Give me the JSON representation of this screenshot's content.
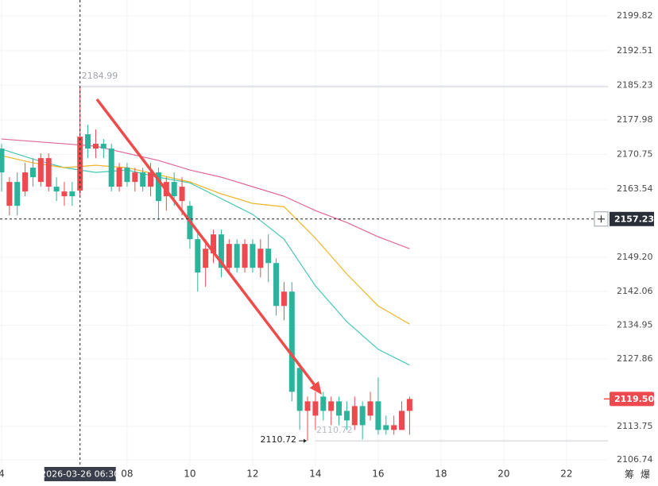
{
  "chart_data": {
    "type": "candlestick",
    "x": [
      4,
      4.25,
      4.5,
      4.75,
      5,
      5.25,
      5.5,
      5.75,
      6,
      6.25,
      6.5,
      6.75,
      7,
      7.25,
      7.5,
      7.75,
      8,
      8.25,
      8.5,
      8.75,
      9,
      9.25,
      9.5,
      9.75,
      10,
      10.25,
      10.5,
      10.75,
      11,
      11.25,
      11.5,
      11.75,
      12,
      12.25,
      12.5,
      12.75,
      13,
      13.25,
      13.5,
      13.75,
      14,
      14.25,
      14.5,
      14.75,
      15,
      15.25,
      15.5,
      15.75,
      16,
      16.25,
      16.5,
      16.75,
      17
    ],
    "open": [
      2172,
      2160,
      2165,
      2163,
      2168,
      2165,
      2164,
      2164,
      2162,
      2163,
      2163.2,
      2175,
      2172,
      2173,
      2172,
      2164,
      2168,
      2165,
      2167,
      2164,
      2167,
      2162,
      2165,
      2161,
      2160,
      2153,
      2147,
      2150,
      2154,
      2147,
      2152,
      2147,
      2152,
      2147,
      2151,
      2148,
      2139,
      2142,
      2126,
      2117,
      2116,
      2120,
      2117,
      2119,
      2117,
      2114,
      2118,
      2116,
      2119,
      2114,
      2113,
      2113,
      2117
    ],
    "high": [
      2173,
      2166,
      2167,
      2169,
      2170,
      2171,
      2171,
      2166,
      2165,
      2165,
      2184.99,
      2177,
      2176,
      2174,
      2173,
      2169,
      2169,
      2168,
      2168,
      2169,
      2168,
      2166,
      2167,
      2166,
      2161,
      2155,
      2153,
      2155,
      2155,
      2153,
      2153,
      2153,
      2153,
      2153,
      2154,
      2149,
      2144,
      2144,
      2127,
      2120,
      2121,
      2121,
      2120,
      2120,
      2119,
      2120,
      2119,
      2121,
      2124,
      2116,
      2116,
      2119,
      2120
    ],
    "low": [
      2163,
      2158,
      2158,
      2162,
      2164,
      2164,
      2163,
      2161,
      2160,
      2160,
      2162,
      2170,
      2170,
      2170,
      2163,
      2163,
      2164,
      2163,
      2163,
      2162,
      2157,
      2159,
      2160,
      2158,
      2151,
      2142,
      2143,
      2148,
      2145,
      2146,
      2146,
      2146,
      2146,
      2145,
      2144,
      2137,
      2136,
      2119,
      2113,
      2110.72,
      2113,
      2115,
      2114,
      2114,
      2113,
      2113,
      2111,
      2115,
      2112,
      2112,
      2112,
      2113,
      2112
    ],
    "close": [
      2167,
      2165,
      2160,
      2167,
      2166,
      2170,
      2170,
      2163,
      2163,
      2162,
      2174.5,
      2172,
      2173,
      2172,
      2164,
      2168,
      2165,
      2167,
      2164,
      2167,
      2161,
      2165,
      2162,
      2164,
      2153,
      2146,
      2151,
      2154,
      2147,
      2152,
      2147,
      2152,
      2147,
      2151,
      2148,
      2139,
      2142,
      2121,
      2117,
      2119,
      2119,
      2117,
      2119,
      2116,
      2115,
      2118,
      2114,
      2119,
      2113,
      2113,
      2114,
      2117,
      2119.5
    ],
    "up_color": "#ec4a4f",
    "down_color": "#2bb39b",
    "lines": [
      {
        "color": "#45c8b4",
        "x": [
          4,
          5,
          6,
          7,
          8,
          9,
          10,
          11,
          12,
          13,
          14,
          15,
          16,
          17
        ],
        "values": [
          2171.9,
          2169.8,
          2168,
          2167,
          2167.5,
          2166,
          2164.8,
          2161.5,
          2158.2,
          2153,
          2143.2,
          2135.7,
          2129.9,
          2126.6
        ]
      },
      {
        "color": "#f0b429",
        "x": [
          4,
          5,
          6,
          7,
          8,
          9,
          10,
          11,
          12,
          13,
          14,
          15,
          16,
          17
        ],
        "values": [
          2170.5,
          2169,
          2168,
          2168.5,
          2168,
          2166.5,
          2165,
          2162.5,
          2160.5,
          2159.8,
          2153.2,
          2145.7,
          2139,
          2135.2
        ]
      },
      {
        "color": "#e0669a",
        "x": [
          4,
          5,
          6,
          7,
          8,
          9,
          10,
          11,
          12,
          13,
          14,
          15,
          16,
          17
        ],
        "values": [
          2174,
          2173.5,
          2173,
          2172.5,
          2171,
          2169.5,
          2167.5,
          2166,
          2164,
          2162,
          2159,
          2156.5,
          2153.5,
          2151
        ]
      }
    ],
    "xlim": [
      3.95,
      23.32
    ],
    "ylim": [
      2104.91,
      2203.15
    ],
    "xticks": [
      4,
      {
        "value": 8,
        "label": "08"
      },
      10,
      12,
      14,
      16,
      18,
      20,
      22
    ],
    "yticks": [
      2199.82,
      2192.51,
      2185.23,
      2177.98,
      2170.75,
      2163.54,
      {
        "value": 2149.2,
        "label": "2149.20"
      },
      2142.06,
      2134.95,
      2127.86,
      2113.75,
      2106.74
    ],
    "grid": true,
    "crosshair": {
      "x": 6.5,
      "y": 2157.23,
      "x_label": "2026-03-26 06:30"
    },
    "high_marker": {
      "x": 6.5,
      "value": 2184.99
    },
    "low_marker": {
      "x": 13.75,
      "value": 2110.72
    },
    "last_price": {
      "value": 2119.5,
      "label": "2119.50"
    },
    "toolbar": [
      "筹",
      "爆"
    ]
  }
}
